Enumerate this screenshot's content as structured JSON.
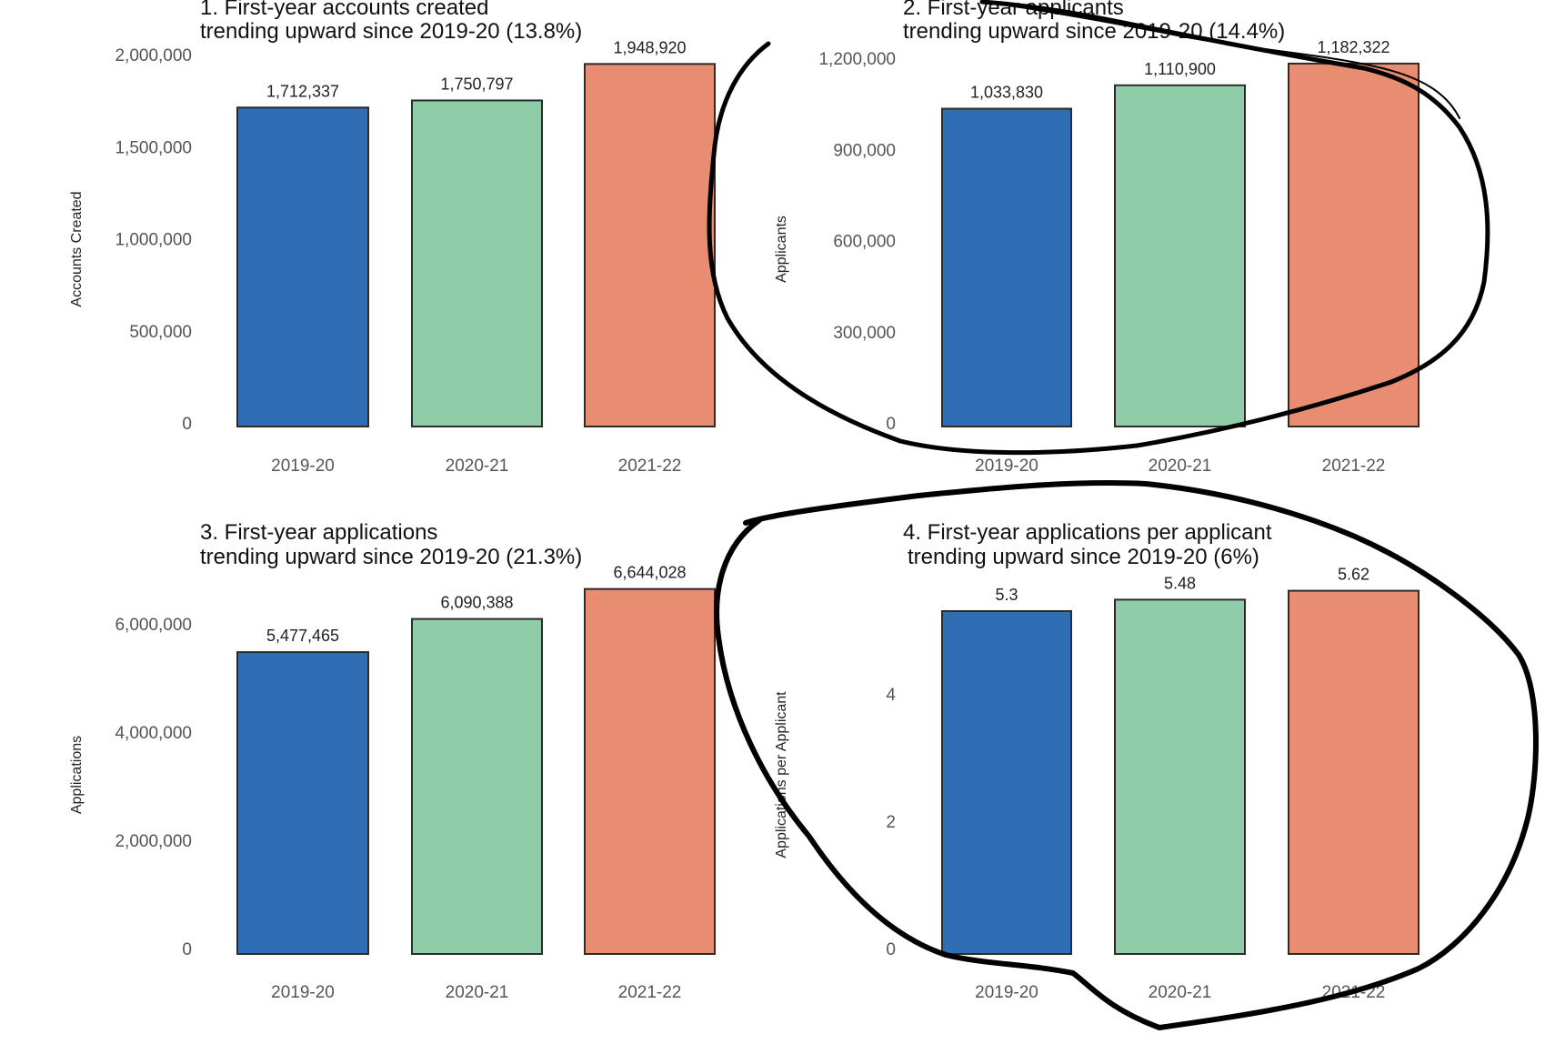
{
  "colors": {
    "2019-20": "#2f6db5",
    "2020-21": "#8ecda8",
    "2021-22": "#e88c72"
  },
  "chart_data": [
    {
      "type": "bar",
      "title": "1. First-year accounts created",
      "subtitle": "trending upward since 2019-20 (13.8%)",
      "xlabel": "",
      "ylabel": "Accounts Created",
      "categories": [
        "2019-20",
        "2020-21",
        "2021-22"
      ],
      "values": [
        1712337,
        1750797,
        1948920
      ],
      "value_labels": [
        "1,712,337",
        "1,750,797",
        "1,948,920"
      ],
      "yticks": [
        0,
        500000,
        1000000,
        1500000,
        2000000
      ],
      "ytick_labels": [
        "0",
        "500,000",
        "1,000,000",
        "1,500,000",
        "2,000,000"
      ],
      "ylim": [
        0,
        2000000
      ],
      "grid": false,
      "annotated": false
    },
    {
      "type": "bar",
      "title": "2. First-year applicants",
      "subtitle": "trending upward since 2019-20 (14.4%)",
      "xlabel": "",
      "ylabel": "Applicants",
      "categories": [
        "2019-20",
        "2020-21",
        "2021-22"
      ],
      "values": [
        1033830,
        1110900,
        1182322
      ],
      "value_labels": [
        "1,033,830",
        "1,110,900",
        "1,182,322"
      ],
      "yticks": [
        0,
        300000,
        600000,
        900000,
        1200000
      ],
      "ytick_labels": [
        "0",
        "300,000",
        "600,000",
        "900,000",
        "1,200,000"
      ],
      "ylim": [
        0,
        1200000
      ],
      "grid": false,
      "annotated": true
    },
    {
      "type": "bar",
      "title": "3. First-year applications",
      "subtitle": "trending upward since 2019-20 (21.3%)",
      "xlabel": "",
      "ylabel": "Applications",
      "categories": [
        "2019-20",
        "2020-21",
        "2021-22"
      ],
      "values": [
        5477465,
        6090388,
        6644028
      ],
      "value_labels": [
        "5,477,465",
        "6,090,388",
        "6,644,028"
      ],
      "yticks": [
        0,
        2000000,
        4000000,
        6000000
      ],
      "ytick_labels": [
        "0",
        "2,000,000",
        "4,000,000",
        "6,000,000"
      ],
      "ylim": [
        0,
        6644028
      ],
      "grid": false,
      "annotated": false
    },
    {
      "type": "bar",
      "title": "4. First-year applications per applicant",
      "subtitle": "trending upward since 2019-20 (6%)",
      "xlabel": "",
      "ylabel": "Applications per Applicant",
      "categories": [
        "2019-20",
        "2020-21",
        "2021-22"
      ],
      "values": [
        5.3,
        5.48,
        5.62
      ],
      "value_labels": [
        "5.3",
        "5.48",
        "5.62"
      ],
      "yticks": [
        0,
        2,
        4
      ],
      "ytick_labels": [
        "0",
        "2",
        "4"
      ],
      "ylim": [
        0,
        5.62
      ],
      "grid": false,
      "annotated": true
    }
  ]
}
